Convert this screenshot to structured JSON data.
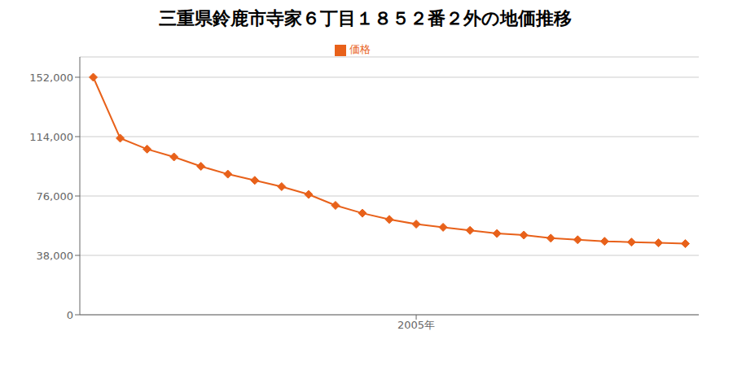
{
  "chart_data": {
    "type": "line",
    "title": "三重県鈴鹿市寺家６丁目１８５２番２外の地価推移",
    "x": [
      1993,
      1994,
      1995,
      1996,
      1997,
      1998,
      1999,
      2000,
      2001,
      2002,
      2003,
      2004,
      2005,
      2006,
      2007,
      2008,
      2009,
      2010,
      2011,
      2012,
      2013,
      2014,
      2015
    ],
    "series": [
      {
        "name": "価格",
        "color": "#e8611a",
        "marker": "diamond",
        "values": [
          152000,
          113000,
          106000,
          101000,
          95000,
          90000,
          86000,
          82000,
          77000,
          70000,
          65000,
          61000,
          58000,
          56000,
          54000,
          52000,
          51000,
          49000,
          48000,
          47000,
          46500,
          46000,
          45500
        ]
      }
    ],
    "xlim": [
      1992.5,
      2015.5
    ],
    "xticks": [
      {
        "value": 2005,
        "label": "2005年"
      }
    ],
    "ylim": [
      0,
      165000
    ],
    "yticks": [
      0,
      {
        "value": 38000,
        "label": "38,000"
      },
      {
        "value": 76000,
        "label": "76,000"
      },
      {
        "value": 114000,
        "label": "114,000"
      },
      {
        "value": 152000,
        "label": "152,000"
      }
    ],
    "grid": true,
    "legend": "top"
  }
}
